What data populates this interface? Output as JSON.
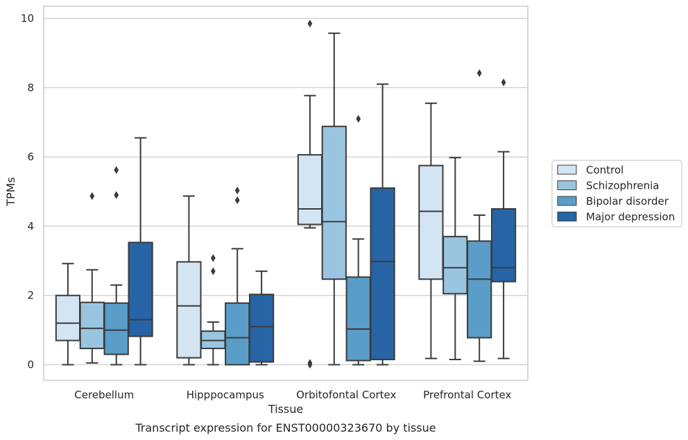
{
  "caption": "Transcript expression for ENST00000323670 by tissue",
  "chart_data": {
    "type": "box",
    "xlabel": "Tissue",
    "ylabel": "TPMs",
    "ylim": [
      -0.45,
      10.35
    ],
    "yticks": [
      0,
      2,
      4,
      6,
      8,
      10
    ],
    "grid": "horizontal",
    "legend_placement": "right-outside",
    "categories": [
      "Cerebellum",
      "Hipppocampus",
      "Orbitofontal Cortex",
      "Prefrontal Cortex"
    ],
    "series": [
      {
        "name": "Control",
        "color": "#d3e4f3",
        "boxes": [
          {
            "whislo": 0.0,
            "q1": 0.7,
            "med": 1.2,
            "q3": 2.0,
            "whishi": 2.92,
            "fliers": []
          },
          {
            "whislo": 0.0,
            "q1": 0.2,
            "med": 1.7,
            "q3": 2.97,
            "whishi": 4.87,
            "fliers": []
          },
          {
            "whislo": 3.95,
            "q1": 4.05,
            "med": 4.5,
            "q3": 6.06,
            "whishi": 7.77,
            "fliers": [
              9.85,
              0.05,
              0.0
            ]
          },
          {
            "whislo": 0.18,
            "q1": 2.47,
            "med": 4.43,
            "q3": 5.75,
            "whishi": 7.55,
            "fliers": []
          }
        ]
      },
      {
        "name": "Schizophrenia",
        "color": "#9ac5e0",
        "boxes": [
          {
            "whislo": 0.05,
            "q1": 0.47,
            "med": 1.05,
            "q3": 1.8,
            "whishi": 2.74,
            "fliers": [
              4.87
            ]
          },
          {
            "whislo": 0.0,
            "q1": 0.47,
            "med": 0.7,
            "q3": 0.97,
            "whishi": 1.23,
            "fliers": [
              3.08,
              2.7
            ]
          },
          {
            "whislo": 0.0,
            "q1": 2.47,
            "med": 4.13,
            "q3": 6.88,
            "whishi": 9.57,
            "fliers": []
          },
          {
            "whislo": 0.15,
            "q1": 2.05,
            "med": 2.8,
            "q3": 3.7,
            "whishi": 5.98,
            "fliers": []
          }
        ]
      },
      {
        "name": "Bipolar disorder",
        "color": "#5a9dc9",
        "boxes": [
          {
            "whislo": 0.0,
            "q1": 0.3,
            "med": 1.0,
            "q3": 1.78,
            "whishi": 2.3,
            "fliers": [
              5.62,
              4.9
            ]
          },
          {
            "whislo": 0.0,
            "q1": 0.0,
            "med": 0.78,
            "q3": 1.78,
            "whishi": 3.35,
            "fliers": [
              5.03,
              4.75
            ]
          },
          {
            "whislo": 0.0,
            "q1": 0.12,
            "med": 1.03,
            "q3": 2.53,
            "whishi": 3.63,
            "fliers": [
              7.1
            ]
          },
          {
            "whislo": 0.1,
            "q1": 0.78,
            "med": 2.47,
            "q3": 3.57,
            "whishi": 4.32,
            "fliers": [
              8.42
            ]
          }
        ]
      },
      {
        "name": "Major depression",
        "color": "#2764a5",
        "boxes": [
          {
            "whislo": 0.0,
            "q1": 0.82,
            "med": 1.3,
            "q3": 3.53,
            "whishi": 6.55,
            "fliers": []
          },
          {
            "whislo": 0.0,
            "q1": 0.08,
            "med": 1.1,
            "q3": 2.03,
            "whishi": 2.7,
            "fliers": []
          },
          {
            "whislo": 0.0,
            "q1": 0.15,
            "med": 2.98,
            "q3": 5.1,
            "whishi": 8.1,
            "fliers": []
          },
          {
            "whislo": 0.18,
            "q1": 2.4,
            "med": 2.8,
            "q3": 4.5,
            "whishi": 6.15,
            "fliers": [
              8.15
            ]
          }
        ]
      }
    ]
  }
}
